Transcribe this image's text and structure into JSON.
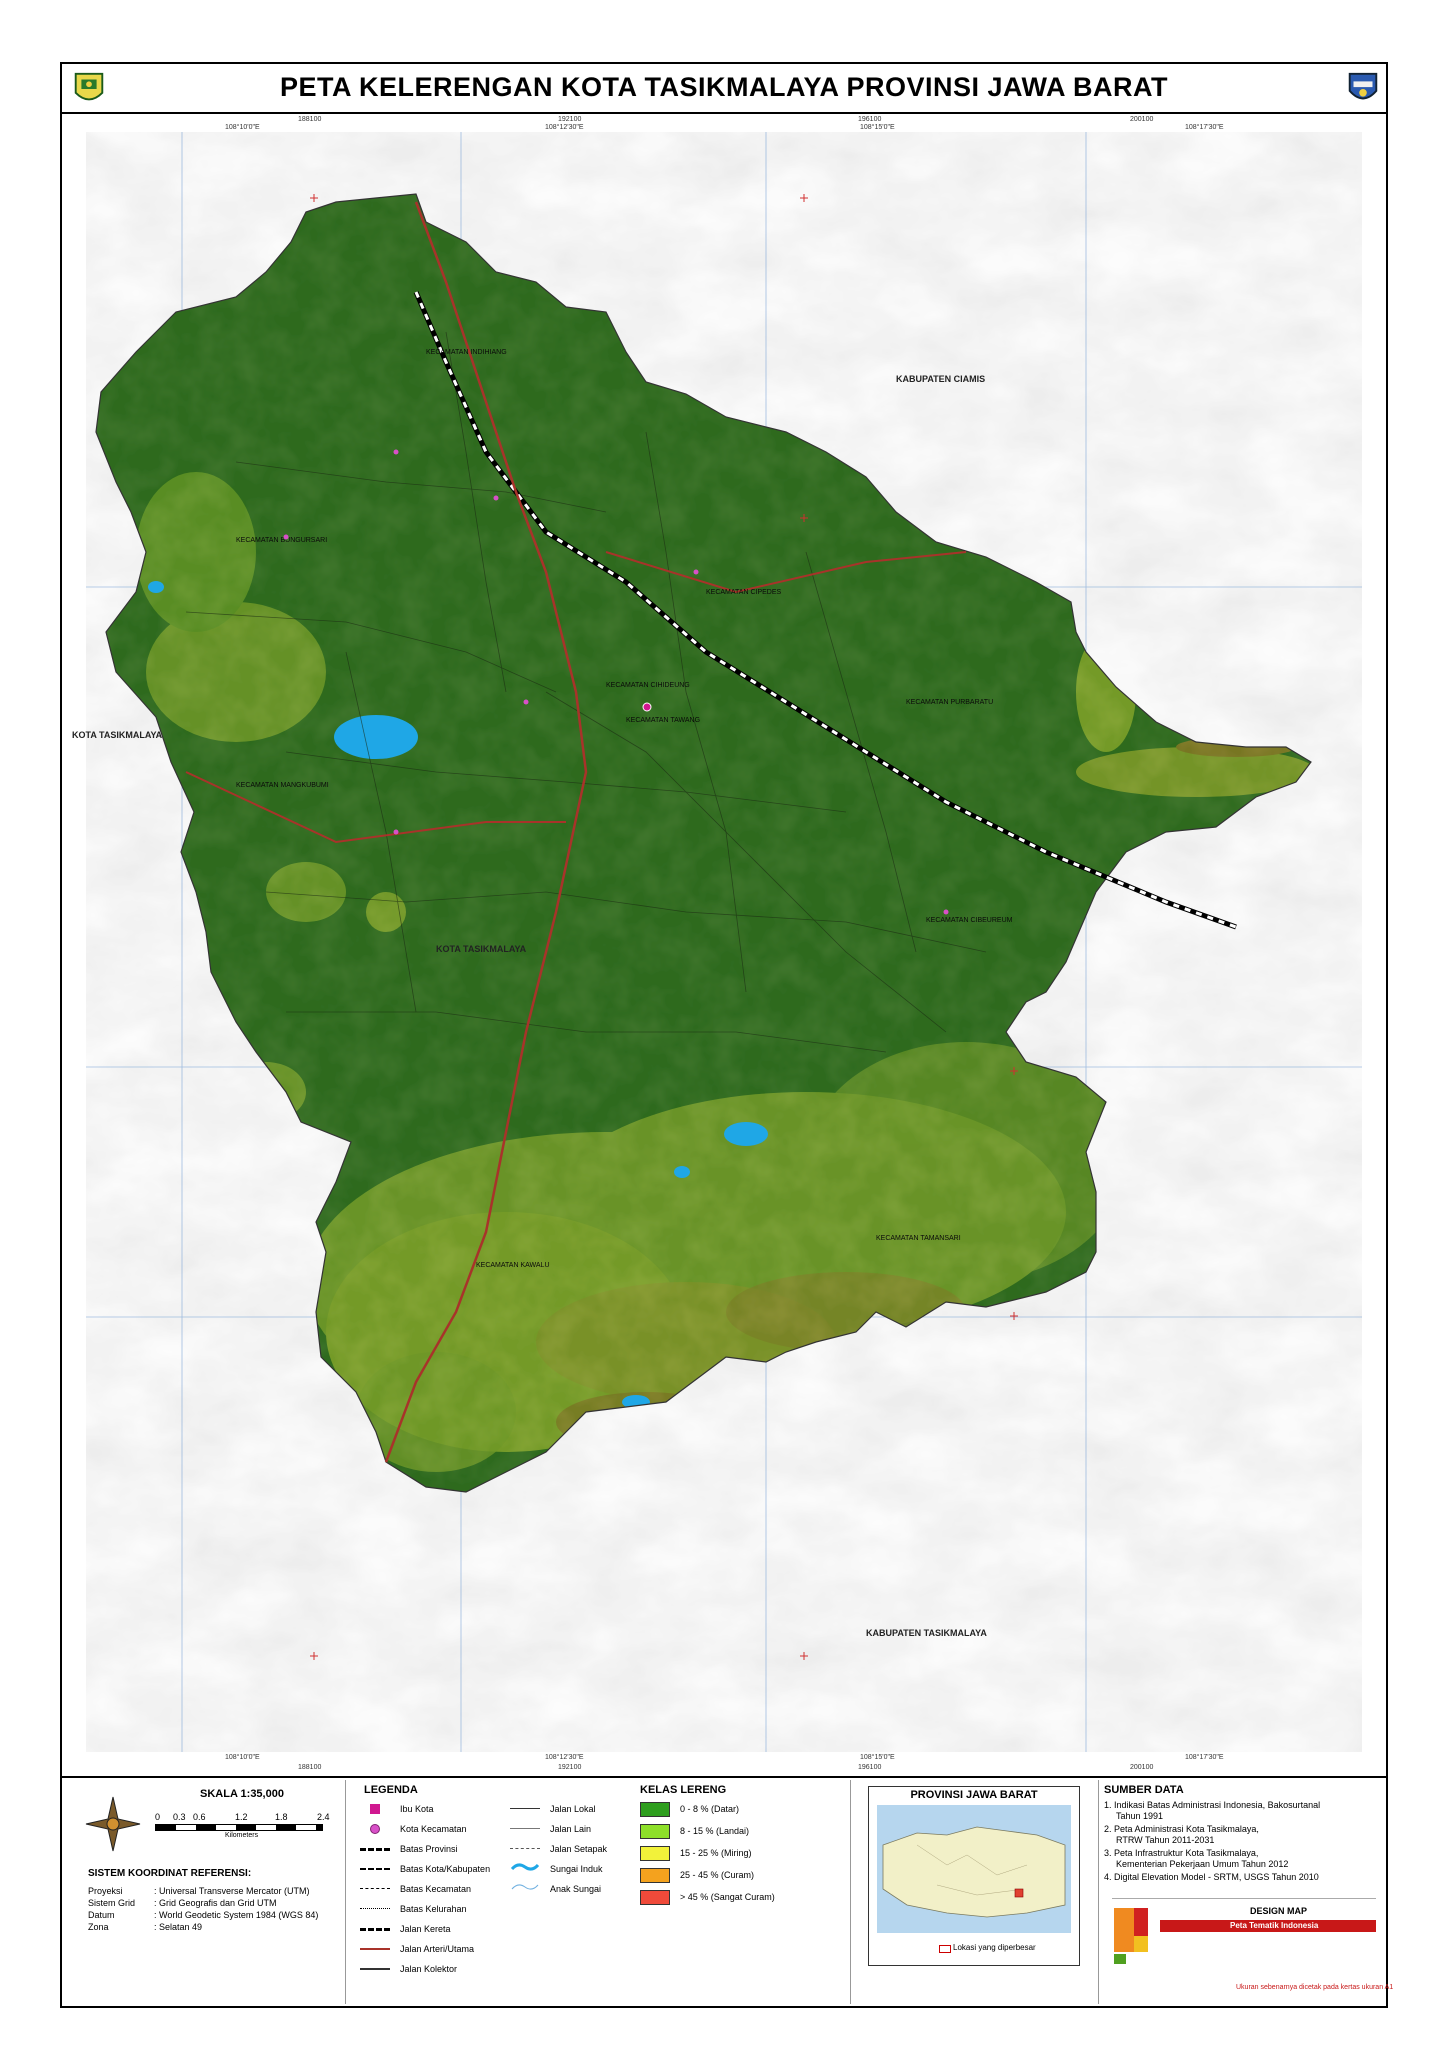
{
  "title": "PETA KELERENGAN KOTA TASIKMALAYA PROVINSI JAWA BARAT",
  "top_coords": [
    "108°10'0\"E",
    "188100",
    "108°12'30\"E",
    "192100",
    "108°15'0\"E",
    "196100",
    "200100",
    "108°17'30\"E"
  ],
  "bottom_coords": [
    "108°10'0\"E",
    "188100",
    "108°12'30\"E",
    "192100",
    "108°15'0\"E",
    "196100",
    "200100",
    "108°17'30\"E"
  ],
  "place_labels": {
    "ciamis": "KABUPATEN CIAMIS",
    "kota_left": "KOTA TASIKMALAYA",
    "kota_center": "KOTA TASIKMALAYA",
    "kab_tasik": "KABUPATEN TASIKMALAYA"
  },
  "kecamatan_labels": [
    "KECAMATAN INDIHIANG",
    "KECAMATAN BUNGURSARI",
    "KECAMATAN CIPEDES",
    "KECAMATAN PURBARATU",
    "KECAMATAN CIHIDEUNG",
    "KECAMATAN TAWANG",
    "KECAMATAN MANGKUBUMI",
    "KECAMATAN CIBEUREUM",
    "KECAMATAN TAMANSARI",
    "KECAMATAN KAWALU"
  ],
  "scale": {
    "label": "SKALA 1:35,000",
    "ticks": [
      "0",
      "0.3",
      "0.6",
      "1.2",
      "1.8",
      "2.4"
    ],
    "unit": "Kilometers"
  },
  "crs": {
    "title": "SISTEM KOORDINAT REFERENSI:",
    "rows": [
      {
        "k": "Proyeksi",
        "v": ": Universal Transverse Mercator (UTM)"
      },
      {
        "k": "Sistem Grid",
        "v": ": Grid Geografis dan Grid UTM"
      },
      {
        "k": "Datum",
        "v": ": World Geodetic System 1984 (WGS 84)"
      },
      {
        "k": "Zona",
        "v": ": Selatan 49"
      }
    ]
  },
  "legend": {
    "title": "LEGENDA",
    "col1": [
      "Ibu Kota",
      "Kota Kecamatan",
      "Batas Provinsi",
      "Batas Kota/Kabupaten",
      "Batas Kecamatan",
      "Batas Kelurahan",
      "Jalan Kereta",
      "Jalan Arteri/Utama",
      "Jalan Kolektor"
    ],
    "col2": [
      "Jalan Lokal",
      "Jalan Lain",
      "Jalan Setapak",
      "Sungai Induk",
      "Anak Sungai"
    ]
  },
  "kelas": {
    "title": "KELAS LERENG",
    "items": [
      {
        "label": "0 - 8 % (Datar)",
        "color": "#2e9e1e"
      },
      {
        "label": "8 - 15 % (Landai)",
        "color": "#8ee02a"
      },
      {
        "label": "15 - 25 % (Miring)",
        "color": "#f2f23a"
      },
      {
        "label": "25 - 45 % (Curam)",
        "color": "#f4a21e"
      },
      {
        "label": "> 45 % (Sangat Curam)",
        "color": "#f04a3a"
      }
    ]
  },
  "inset": {
    "title": "PROVINSI JAWA BARAT",
    "caption": "Lokasi yang diperbesar"
  },
  "sumber": {
    "title": "SUMBER DATA",
    "lines": [
      "1. Indikasi Batas Administrasi Indonesia, Bakosurtanal",
      "   Tahun 1991",
      "2. Peta Administrasi Kota Tasikmalaya,",
      "   RTRW Tahun 2011-2031",
      "3. Peta Infrastruktur Kota Tasikmalaya,",
      "   Kementerian Pekerjaan Umum Tahun 2012",
      "4. Digital Elevation Model - SRTM, USGS Tahun 2010"
    ]
  },
  "design": {
    "label": "DESIGN MAP",
    "brand": "Peta Tematik Indonesia",
    "footer": "Ukuran sebenarnya dicetak pada kertas ukuran A1"
  },
  "colors": {
    "datar": "#2f6b1f",
    "water": "#1fa7e6",
    "road": "#b23a2a"
  }
}
